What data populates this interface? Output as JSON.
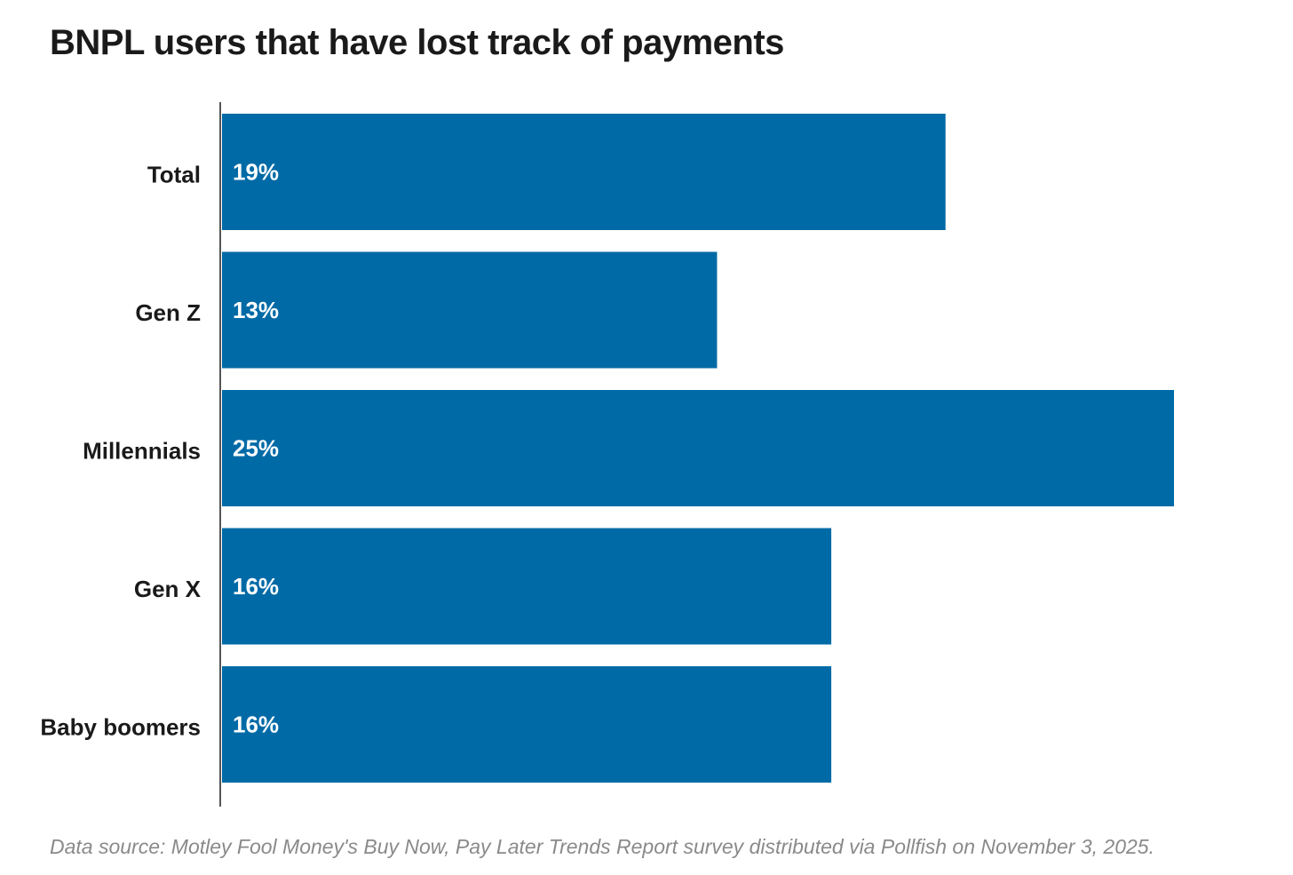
{
  "chart_data": {
    "type": "bar",
    "orientation": "horizontal",
    "title": "BNPL users that have lost track of payments",
    "categories": [
      "Total",
      "Gen Z",
      "Millennials",
      "Gen X",
      "Baby boomers"
    ],
    "values": [
      19,
      13,
      25,
      16,
      16
    ],
    "value_labels": [
      "19%",
      "13%",
      "25%",
      "16%",
      "16%"
    ],
    "unit": "%",
    "xlim": [
      0,
      25
    ],
    "grid": false,
    "legend": "none",
    "bar_color": "#006aa6",
    "source": "Data source: Motley Fool Money's Buy Now, Pay Later Trends Report survey distributed via Pollfish on November 3, 2025."
  }
}
